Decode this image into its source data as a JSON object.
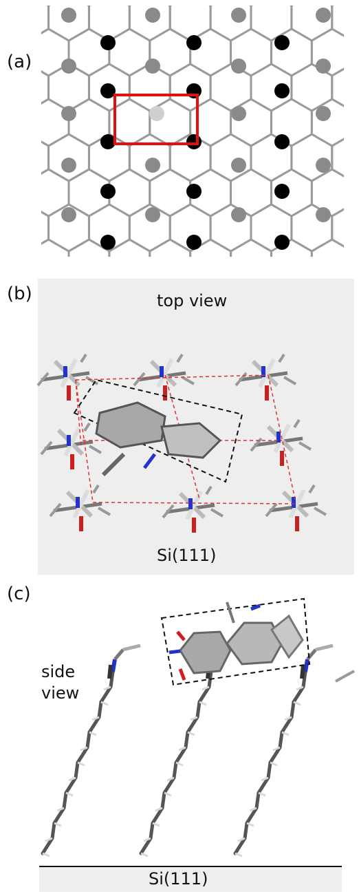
{
  "panels": {
    "a": {
      "label": "(a)"
    },
    "b": {
      "label": "(b)",
      "title": "top view",
      "substrate": "Si(111)"
    },
    "c": {
      "label": "(c)",
      "title_line1": "side",
      "title_line2": "view",
      "substrate": "Si(111)"
    }
  },
  "colors": {
    "lattice_bond": "#9a9a9a",
    "atom_black": "#000000",
    "atom_gray": "#8a8a8a",
    "atom_light": "#cfcfcf",
    "unit_cell": "#e01010",
    "dashed_cell": "#e03030",
    "panel_bg": "#eeeeee",
    "nitrogen": "#2233cc",
    "oxygen": "#cc2020",
    "carbon": "#555555",
    "hydrogen": "#d8d8d8"
  }
}
